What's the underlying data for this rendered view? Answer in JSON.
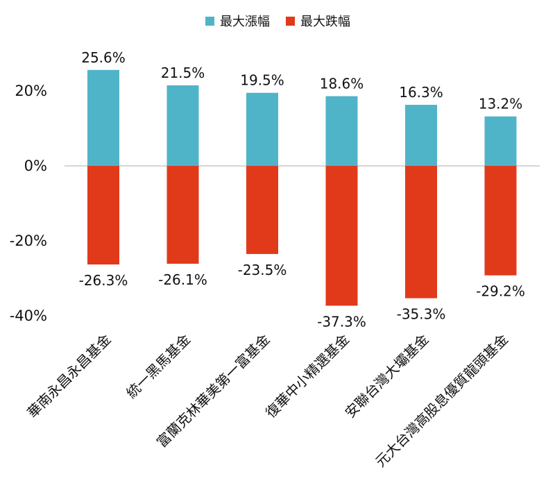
{
  "chart_data": {
    "type": "bar",
    "categories": [
      "華南永昌永昌基金",
      "統一黑馬基金",
      "富蘭克林華美第一富基金",
      "復華中小精選基金",
      "安聯台灣大壩基金",
      "元大台灣高股息優質龍頭基金"
    ],
    "series": [
      {
        "name": "最大漲幅",
        "color": "#4fb4c8",
        "values": [
          25.6,
          21.5,
          19.5,
          18.6,
          16.3,
          13.2
        ]
      },
      {
        "name": "最大跌幅",
        "color": "#e03a1a",
        "values": [
          -26.3,
          -26.1,
          -23.5,
          -37.3,
          -35.3,
          -29.2
        ]
      }
    ],
    "data_labels": {
      "最大漲幅": [
        "25.6%",
        "21.5%",
        "19.5%",
        "18.6%",
        "16.3%",
        "13.2%"
      ],
      "最大跌幅": [
        "-26.3%",
        "-26.1%",
        "-23.5%",
        "-37.3%",
        "-35.3%",
        "-29.2%"
      ]
    },
    "y_ticks": [
      {
        "value": 20,
        "label": "20%"
      },
      {
        "value": 0,
        "label": "0%"
      },
      {
        "value": -20,
        "label": "-20%"
      },
      {
        "value": -40,
        "label": "-40%"
      }
    ],
    "ylim": [
      -40,
      28
    ],
    "legend_position": "top",
    "title": "",
    "xlabel": "",
    "ylabel": "",
    "grid": false
  }
}
